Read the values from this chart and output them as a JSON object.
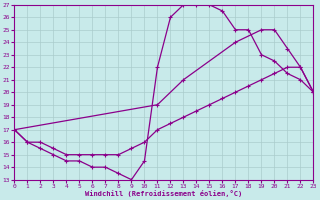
{
  "xlabel": "Windchill (Refroidissement éolien,°C)",
  "bg_color": "#c8eaea",
  "line_color": "#8b008b",
  "grid_color": "#aacccc",
  "xmin": 0,
  "xmax": 23,
  "ymin": 13,
  "ymax": 27,
  "xticks": [
    0,
    1,
    2,
    3,
    4,
    5,
    6,
    7,
    8,
    9,
    10,
    11,
    12,
    13,
    14,
    15,
    16,
    17,
    18,
    19,
    20,
    21,
    22,
    23
  ],
  "yticks": [
    13,
    14,
    15,
    16,
    17,
    18,
    19,
    20,
    21,
    22,
    23,
    24,
    25,
    26,
    27
  ],
  "line1_x": [
    0,
    1,
    2,
    3,
    4,
    5,
    6,
    7,
    8,
    9,
    10,
    11,
    12,
    13,
    14,
    15,
    16,
    17,
    18,
    19,
    20,
    21,
    22,
    23
  ],
  "line1_y": [
    17,
    16,
    15.5,
    15,
    14.5,
    14.5,
    14,
    14,
    13.5,
    13,
    14.5,
    22,
    26,
    27,
    27,
    27,
    26.5,
    25,
    25,
    23,
    22.5,
    21.5,
    21,
    20
  ],
  "line2_x": [
    0,
    11,
    13,
    17,
    19,
    20,
    21,
    22,
    23
  ],
  "line2_y": [
    17,
    19,
    21,
    24,
    25,
    25,
    23.5,
    22,
    20
  ],
  "line3_x": [
    0,
    1,
    2,
    3,
    4,
    5,
    6,
    7,
    8,
    9,
    10,
    11,
    12,
    13,
    14,
    15,
    16,
    17,
    18,
    19,
    20,
    21,
    22,
    23
  ],
  "line3_y": [
    17,
    16,
    16,
    15.5,
    15,
    15,
    15,
    15,
    15,
    15.5,
    16,
    17,
    17.5,
    18,
    18.5,
    19,
    19.5,
    20,
    20.5,
    21,
    21.5,
    22,
    22,
    20
  ]
}
